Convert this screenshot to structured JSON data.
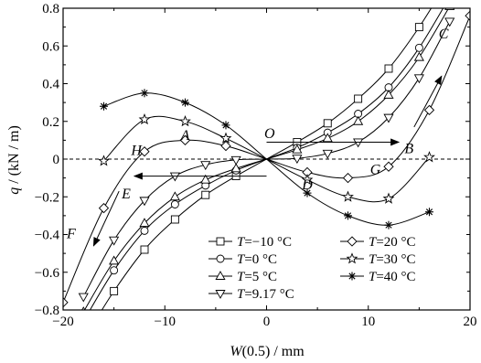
{
  "chart_data": {
    "type": "line",
    "xlabel_var": "W",
    "xlabel_rest": "(0.5) / mm",
    "ylabel_var": "q",
    "ylabel_rest": " / (kN / m)",
    "xlim": [
      -20,
      20
    ],
    "ylim": [
      -0.8,
      0.8
    ],
    "xticks": [
      -20,
      -10,
      0,
      10,
      20
    ],
    "xtick_labels": [
      "−20",
      "−10",
      "0",
      "10",
      "20"
    ],
    "yticks": [
      -0.8,
      -0.6,
      -0.4,
      -0.2,
      0,
      0.2,
      0.4,
      0.6,
      0.8
    ],
    "ytick_labels": [
      "−0.8",
      "−0.6",
      "−0.4",
      "−0.2",
      "0",
      "0.2",
      "0.4",
      "0.6",
      "0.8"
    ],
    "grid": false,
    "legend_position": "bottom-right",
    "zero_line": "dashed",
    "series": [
      {
        "name": "T=−10 °C",
        "var": "T",
        "rest": "=−10 °C",
        "marker": "square",
        "x": [
          -18,
          -15,
          -12,
          -9,
          -6,
          -3,
          0,
          3,
          6,
          9,
          12,
          15,
          18
        ],
        "y": [
          -0.96,
          -0.7,
          -0.48,
          -0.32,
          -0.19,
          -0.09,
          0,
          0.09,
          0.19,
          0.32,
          0.48,
          0.7,
          0.96
        ]
      },
      {
        "name": "T=0 °C",
        "var": "T",
        "rest": "=0 °C",
        "marker": "circle",
        "x": [
          -18,
          -15,
          -12,
          -9,
          -6,
          -3,
          0,
          3,
          6,
          9,
          12,
          15,
          18
        ],
        "y": [
          -0.86,
          -0.59,
          -0.38,
          -0.24,
          -0.14,
          -0.06,
          0,
          0.06,
          0.14,
          0.24,
          0.38,
          0.59,
          0.86
        ]
      },
      {
        "name": "T=5 °C",
        "var": "T",
        "rest": "=5 °C",
        "marker": "triangle-up",
        "x": [
          -18,
          -15,
          -12,
          -9,
          -6,
          -3,
          0,
          3,
          6,
          9,
          12,
          15,
          18
        ],
        "y": [
          -0.81,
          -0.54,
          -0.34,
          -0.2,
          -0.11,
          -0.05,
          0,
          0.05,
          0.11,
          0.2,
          0.34,
          0.54,
          0.81
        ]
      },
      {
        "name": "T=9.17 °C",
        "var": "T",
        "rest": "=9.17 °C",
        "marker": "triangle-down",
        "x": [
          -18,
          -15,
          -12,
          -9,
          -6,
          -3,
          0,
          3,
          6,
          9,
          12,
          15,
          18
        ],
        "y": [
          -0.73,
          -0.43,
          -0.22,
          -0.09,
          -0.03,
          -0.004,
          0,
          0.004,
          0.03,
          0.09,
          0.22,
          0.43,
          0.73
        ]
      },
      {
        "name": "T=20 °C",
        "var": "T",
        "rest": "=20 °C",
        "marker": "diamond",
        "x": [
          -20,
          -16,
          -12,
          -8,
          -4,
          0,
          4,
          8,
          12,
          16,
          20
        ],
        "y": [
          -0.76,
          -0.26,
          0.04,
          0.1,
          0.07,
          0,
          -0.07,
          -0.1,
          -0.04,
          0.26,
          0.76
        ]
      },
      {
        "name": "T=30 °C",
        "var": "T",
        "rest": "=30 °C",
        "marker": "star",
        "x": [
          -16,
          -12,
          -8,
          -4,
          0,
          4,
          8,
          12,
          16
        ],
        "y": [
          -0.01,
          0.21,
          0.2,
          0.11,
          0,
          -0.11,
          -0.2,
          -0.21,
          0.01
        ]
      },
      {
        "name": "T=40 °C",
        "var": "T",
        "rest": "=40 °C",
        "marker": "asterisk",
        "x": [
          -16,
          -12,
          -8,
          -4,
          0,
          4,
          8,
          12,
          16
        ],
        "y": [
          0.28,
          0.35,
          0.3,
          0.18,
          0,
          -0.18,
          -0.3,
          -0.35,
          -0.28
        ]
      }
    ],
    "annotations": [
      {
        "text": "O",
        "x": 0.3,
        "y": 0.14
      },
      {
        "text": "A",
        "x": -8.0,
        "y": 0.13
      },
      {
        "text": "B",
        "x": 14.0,
        "y": 0.06
      },
      {
        "text": "C",
        "x": 17.4,
        "y": 0.67
      },
      {
        "text": "D",
        "x": 4.0,
        "y": -0.13
      },
      {
        "text": "E",
        "x": -13.8,
        "y": -0.18
      },
      {
        "text": "F",
        "x": -19.2,
        "y": -0.39
      },
      {
        "text": "G",
        "x": 10.7,
        "y": -0.05
      },
      {
        "text": "H",
        "x": -12.8,
        "y": 0.05
      }
    ],
    "arrows": [
      {
        "from": [
          0,
          0.09
        ],
        "to": [
          13,
          0.09
        ]
      },
      {
        "from": [
          0,
          -0.09
        ],
        "to": [
          -13,
          -0.09
        ]
      },
      {
        "from": [
          14.5,
          0.17
        ],
        "to": [
          17.2,
          0.44
        ]
      },
      {
        "from": [
          -14.5,
          -0.17
        ],
        "to": [
          -17.0,
          -0.46
        ]
      }
    ]
  }
}
